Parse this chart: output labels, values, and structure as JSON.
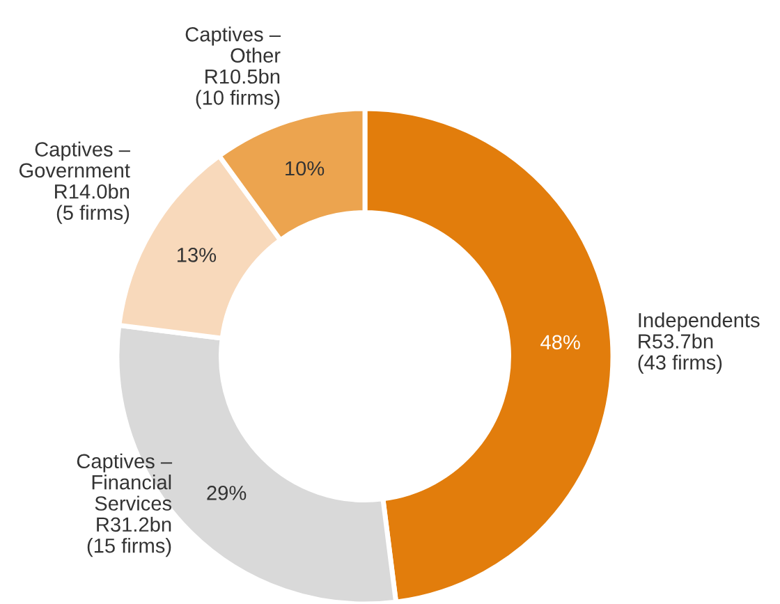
{
  "chart_data": {
    "type": "donut",
    "categories": [
      "Independents\nR53.7bn\n(43 firms)",
      "Captives –\nFinancial\nServices\nR31.2bn\n(15 firms)",
      "Captives –\nGovernment\nR14.0bn\n(5 firms)",
      "Captives –\nOther\nR10.5bn\n(10 firms)"
    ],
    "values": [
      48,
      29,
      13,
      10
    ],
    "colors": [
      "#e27d0c",
      "#d9d9d9",
      "#f8d9bb",
      "#eca44f"
    ],
    "value_labels": [
      "48%",
      "29%",
      "13%",
      "10%"
    ],
    "legend": false
  }
}
